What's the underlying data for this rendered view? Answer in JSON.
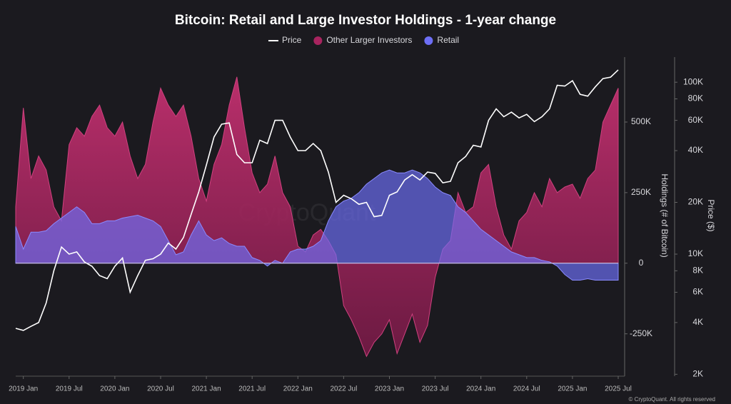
{
  "chart_data": {
    "type": "area-line",
    "title": "Bitcoin: Retail and Large Investor Holdings - 1-year change",
    "watermark": "CryptoQuant",
    "footer": "© CryptoQuant. All rights reserved",
    "ylabel": "Holdings (# of Bitcoin)",
    "y2label": "Price ($)",
    "y2scale": "log",
    "legend": "top",
    "x": [
      "2018-12",
      "2019-01",
      "2019-02",
      "2019-03",
      "2019-04",
      "2019-05",
      "2019-06",
      "2019-07",
      "2019-08",
      "2019-09",
      "2019-10",
      "2019-11",
      "2019-12",
      "2020-01",
      "2020-02",
      "2020-03",
      "2020-04",
      "2020-05",
      "2020-06",
      "2020-07",
      "2020-08",
      "2020-09",
      "2020-10",
      "2020-11",
      "2020-12",
      "2021-01",
      "2021-02",
      "2021-03",
      "2021-04",
      "2021-05",
      "2021-06",
      "2021-07",
      "2021-08",
      "2021-09",
      "2021-10",
      "2021-11",
      "2021-12",
      "2022-01",
      "2022-02",
      "2022-03",
      "2022-04",
      "2022-05",
      "2022-06",
      "2022-07",
      "2022-08",
      "2022-09",
      "2022-10",
      "2022-11",
      "2022-12",
      "2023-01",
      "2023-02",
      "2023-03",
      "2023-04",
      "2023-05",
      "2023-06",
      "2023-07",
      "2023-08",
      "2023-09",
      "2023-10",
      "2023-11",
      "2023-12",
      "2024-01",
      "2024-02",
      "2024-03",
      "2024-04",
      "2024-05",
      "2024-06",
      "2024-07",
      "2024-08",
      "2024-09",
      "2024-10",
      "2024-11",
      "2024-12",
      "2025-01",
      "2025-02",
      "2025-03",
      "2025-04",
      "2025-05",
      "2025-06",
      "2025-07"
    ],
    "xticks": [
      {
        "value": "2019-01",
        "label": "2019 Jan"
      },
      {
        "value": "2019-07",
        "label": "2019 Jul"
      },
      {
        "value": "2020-01",
        "label": "2020 Jan"
      },
      {
        "value": "2020-07",
        "label": "2020 Jul"
      },
      {
        "value": "2021-01",
        "label": "2021 Jan"
      },
      {
        "value": "2021-07",
        "label": "2021 Jul"
      },
      {
        "value": "2022-01",
        "label": "2022 Jan"
      },
      {
        "value": "2022-07",
        "label": "2022 Jul"
      },
      {
        "value": "2023-01",
        "label": "2023 Jan"
      },
      {
        "value": "2023-07",
        "label": "2023 Jul"
      },
      {
        "value": "2024-01",
        "label": "2024 Jan"
      },
      {
        "value": "2024-07",
        "label": "2024 Jul"
      },
      {
        "value": "2025-01",
        "label": "2025 Jan"
      },
      {
        "value": "2025-07",
        "label": "2025 Jul"
      }
    ],
    "ylim": [
      -400000,
      730000
    ],
    "yticks": [
      {
        "value": -250000,
        "label": "-250K"
      },
      0,
      {
        "value": 250000,
        "label": "250K"
      },
      {
        "value": 500000,
        "label": "500K"
      }
    ],
    "y2lim": [
      1950,
      140000
    ],
    "y2ticks": [
      {
        "value": 2000,
        "label": "2K"
      },
      {
        "value": 4000,
        "label": "4K"
      },
      {
        "value": 6000,
        "label": "6K"
      },
      {
        "value": 8000,
        "label": "8K"
      },
      {
        "value": 10000,
        "label": "10K"
      },
      {
        "value": 20000,
        "label": "20K"
      },
      {
        "value": 40000,
        "label": "40K"
      },
      {
        "value": 60000,
        "label": "60K"
      },
      {
        "value": 80000,
        "label": "80K"
      },
      {
        "value": 100000,
        "label": "100K"
      }
    ],
    "series": [
      {
        "name": "Price",
        "color": "#ffffff",
        "axis": "y2",
        "kind": "line",
        "values": [
          3700,
          3600,
          3800,
          4000,
          5200,
          8000,
          11000,
          10000,
          10300,
          9000,
          8500,
          7500,
          7200,
          8500,
          9500,
          6000,
          7500,
          9200,
          9400,
          10000,
          11600,
          10700,
          12500,
          17000,
          23000,
          33000,
          48000,
          57000,
          58000,
          38000,
          34000,
          34000,
          46000,
          44000,
          60000,
          60000,
          48000,
          40000,
          40000,
          44000,
          40000,
          30000,
          20000,
          22000,
          21000,
          19500,
          20000,
          16500,
          16800,
          22000,
          23000,
          27000,
          29000,
          27000,
          30000,
          29500,
          26000,
          26500,
          34000,
          37000,
          43000,
          42000,
          60000,
          70000,
          63000,
          67000,
          62000,
          65000,
          59000,
          63000,
          70000,
          96000,
          95000,
          102000,
          85000,
          83000,
          94000,
          105000,
          107000,
          118000
        ]
      },
      {
        "name": "Other Larger Investors",
        "color": "#a8245f",
        "kind": "area",
        "values": [
          200000,
          550000,
          300000,
          380000,
          330000,
          200000,
          150000,
          420000,
          480000,
          450000,
          520000,
          560000,
          480000,
          450000,
          500000,
          380000,
          300000,
          350000,
          500000,
          620000,
          560000,
          520000,
          560000,
          450000,
          300000,
          220000,
          350000,
          420000,
          560000,
          660000,
          480000,
          320000,
          250000,
          280000,
          380000,
          250000,
          200000,
          60000,
          40000,
          100000,
          120000,
          80000,
          30000,
          -150000,
          -200000,
          -260000,
          -330000,
          -280000,
          -250000,
          -200000,
          -320000,
          -250000,
          -180000,
          -280000,
          -220000,
          -50000,
          50000,
          80000,
          250000,
          180000,
          200000,
          320000,
          350000,
          200000,
          100000,
          50000,
          150000,
          180000,
          250000,
          200000,
          300000,
          250000,
          270000,
          280000,
          230000,
          300000,
          330000,
          500000,
          560000,
          620000
        ]
      },
      {
        "name": "Retail",
        "color": "#6d6ef5",
        "kind": "area",
        "values": [
          130000,
          50000,
          110000,
          110000,
          115000,
          140000,
          160000,
          180000,
          200000,
          180000,
          140000,
          140000,
          150000,
          150000,
          160000,
          165000,
          170000,
          160000,
          150000,
          130000,
          80000,
          30000,
          40000,
          100000,
          150000,
          100000,
          80000,
          90000,
          70000,
          60000,
          60000,
          20000,
          10000,
          -10000,
          10000,
          0,
          40000,
          50000,
          50000,
          60000,
          80000,
          150000,
          200000,
          220000,
          230000,
          250000,
          280000,
          300000,
          320000,
          330000,
          320000,
          320000,
          330000,
          320000,
          300000,
          270000,
          250000,
          240000,
          200000,
          180000,
          150000,
          120000,
          100000,
          80000,
          60000,
          40000,
          30000,
          20000,
          20000,
          10000,
          5000,
          -10000,
          -40000,
          -60000,
          -60000,
          -55000,
          -60000,
          -60000,
          -60000,
          -60000
        ]
      }
    ]
  }
}
